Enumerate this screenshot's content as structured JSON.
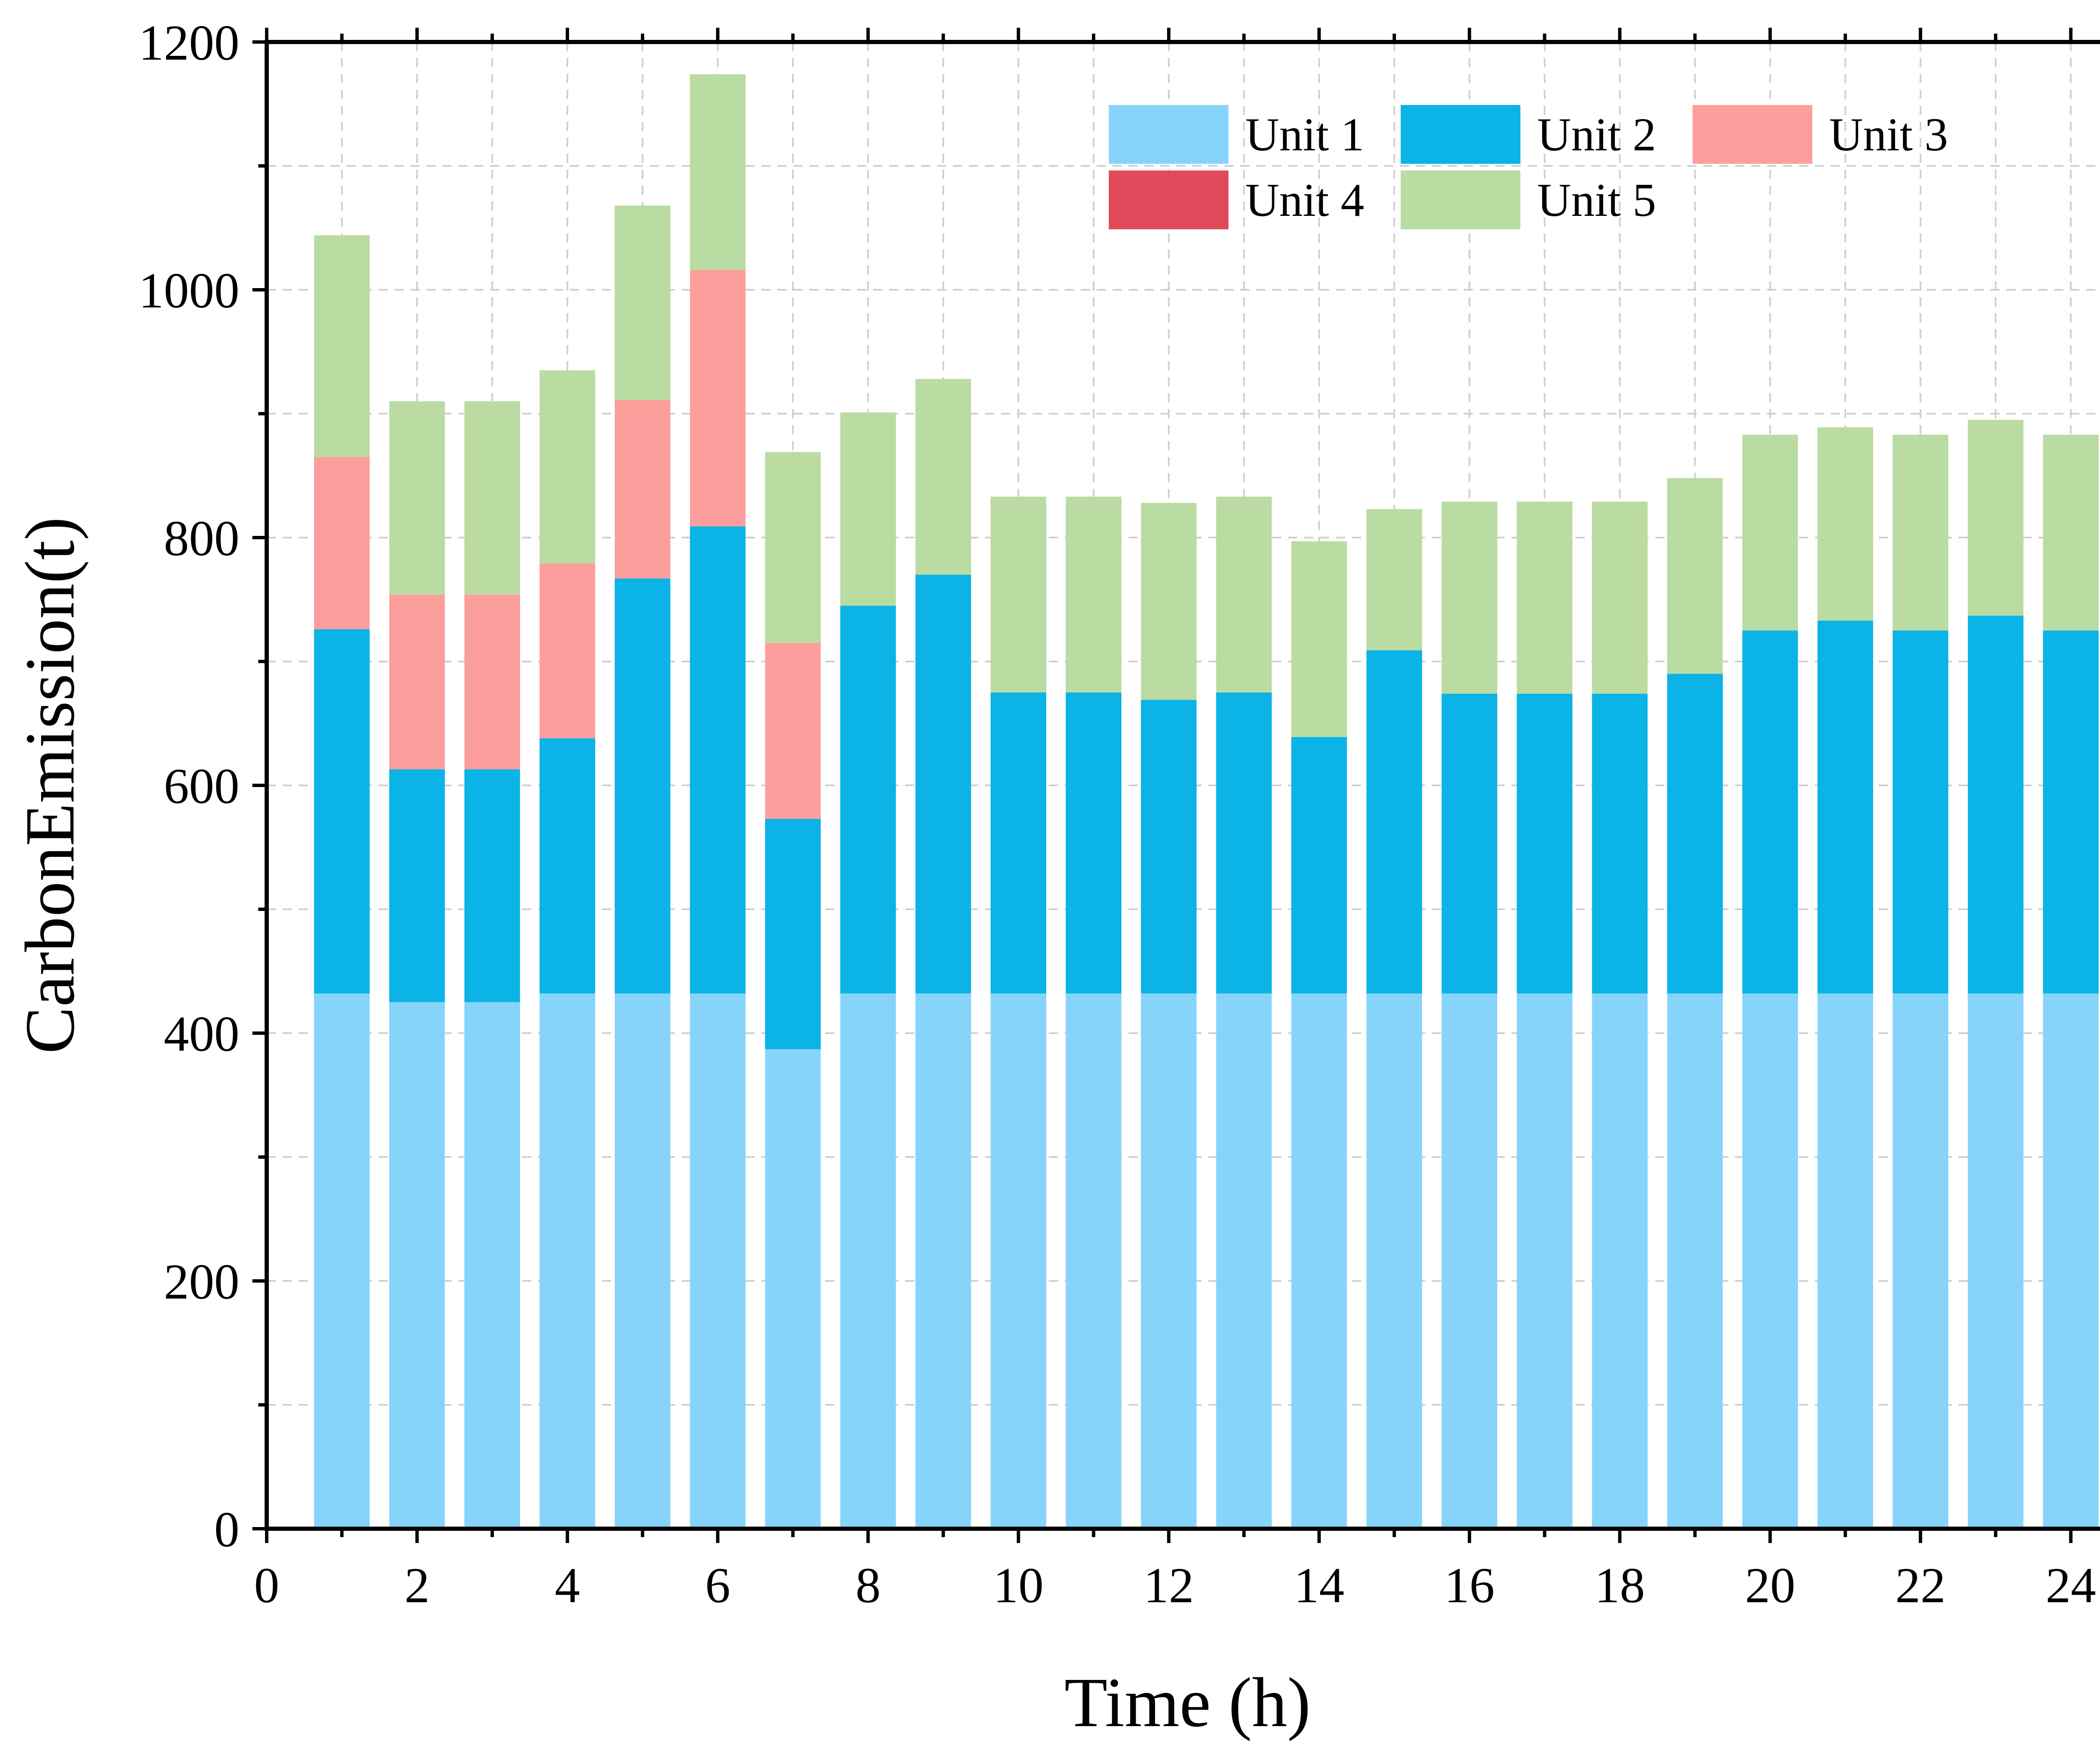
{
  "chart_data": {
    "type": "bar",
    "stacked": true,
    "title": "",
    "xlabel": "Time (h)",
    "ylabel": "CarbonEmission(t)",
    "xlim": [
      0,
      24.5
    ],
    "ylim": [
      0,
      1200
    ],
    "xticks": [
      0,
      2,
      4,
      6,
      8,
      10,
      12,
      14,
      16,
      18,
      20,
      22,
      24
    ],
    "yticks": [
      0,
      200,
      400,
      600,
      800,
      1000,
      1200
    ],
    "grid": true,
    "legend_position": "top-right",
    "x": [
      1,
      2,
      3,
      4,
      5,
      6,
      7,
      8,
      9,
      10,
      11,
      12,
      13,
      14,
      15,
      16,
      17,
      18,
      19,
      20,
      21,
      22,
      23,
      24
    ],
    "series": [
      {
        "name": "Unit 1",
        "color": "#87d4fa",
        "values": [
          432,
          425,
          425,
          432,
          432,
          432,
          387,
          432,
          432,
          432,
          432,
          432,
          432,
          432,
          432,
          432,
          432,
          432,
          432,
          432,
          432,
          432,
          432,
          432
        ]
      },
      {
        "name": "Unit 2",
        "color": "#0bb3e6",
        "values": [
          294,
          188,
          188,
          206,
          335,
          377,
          186,
          313,
          338,
          243,
          243,
          237,
          243,
          207,
          277,
          242,
          242,
          242,
          258,
          293,
          301,
          293,
          305,
          293
        ]
      },
      {
        "name": "Unit 3",
        "color": "#fc9e9c",
        "values": [
          139,
          141,
          141,
          141,
          144,
          207,
          142,
          0,
          0,
          0,
          0,
          0,
          0,
          0,
          0,
          0,
          0,
          0,
          0,
          0,
          0,
          0,
          0,
          0
        ]
      },
      {
        "name": "Unit 4",
        "color": "#e04a5a",
        "values": [
          0,
          0,
          0,
          0,
          0,
          0,
          0,
          0,
          0,
          0,
          0,
          0,
          0,
          0,
          0,
          0,
          0,
          0,
          0,
          0,
          0,
          0,
          0,
          0
        ]
      },
      {
        "name": "Unit 5",
        "color": "#badba1",
        "values": [
          179,
          156,
          156,
          156,
          157,
          158,
          154,
          156,
          158,
          158,
          158,
          159,
          158,
          158,
          114,
          155,
          155,
          155,
          158,
          158,
          156,
          158,
          158,
          158
        ]
      }
    ]
  }
}
